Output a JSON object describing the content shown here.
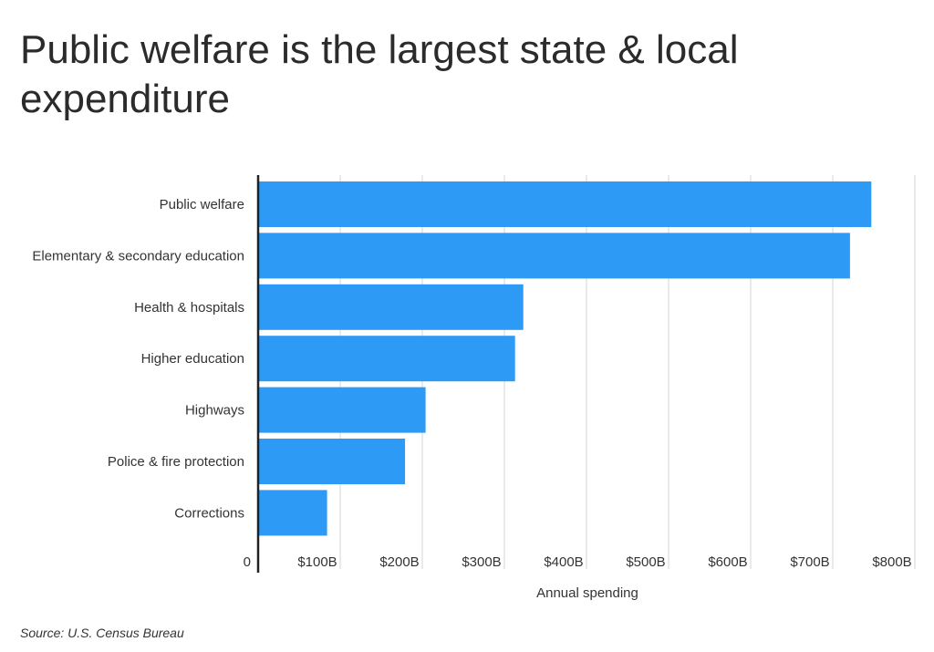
{
  "title": "Public welfare is the largest state & local expenditure",
  "source": "Source:  U.S. Census Bureau",
  "chart_data": {
    "type": "bar",
    "orientation": "horizontal",
    "title": "Public welfare is the largest state & local expenditure",
    "xlabel": "Annual spending",
    "ylabel": "",
    "categories": [
      "Public welfare",
      "Elementary & secondary education",
      "Health & hospitals",
      "Higher education",
      "Highways",
      "Police & fire protection",
      "Corrections"
    ],
    "values": [
      747,
      721,
      323,
      313,
      204,
      179,
      84
    ],
    "xlim": [
      0,
      800
    ],
    "ticks": [
      0,
      100,
      200,
      300,
      400,
      500,
      600,
      700,
      800
    ],
    "tick_labels": [
      "0",
      "$100B",
      "$200B",
      "$300B",
      "$400B",
      "$500B",
      "$600B",
      "$700B",
      "$800B"
    ],
    "grid": true,
    "bar_color": "#2d9bf5",
    "grid_color": "#d6d6d6",
    "axis_color": "#222222"
  }
}
